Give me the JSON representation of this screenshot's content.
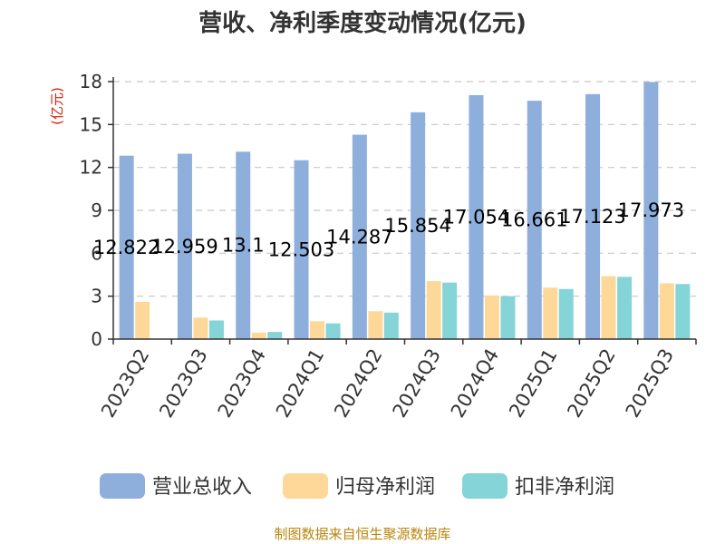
{
  "chart_data": {
    "type": "bar",
    "title": "营收、净利季度变动情况(亿元)",
    "ylabel": "(亿元)",
    "ylim": [
      0,
      18
    ],
    "yticks": [
      0,
      3,
      6,
      9,
      12,
      15,
      18
    ],
    "grid": true,
    "legend_position": "bottom",
    "categories": [
      "2023Q2",
      "2023Q3",
      "2023Q4",
      "2024Q1",
      "2024Q2",
      "2024Q3",
      "2024Q4",
      "2025Q1",
      "2025Q2",
      "2025Q3"
    ],
    "series": [
      {
        "name": "营业总收入",
        "color": "#8eaedb",
        "values": [
          12.822,
          12.959,
          13.1,
          12.503,
          14.287,
          15.854,
          17.054,
          16.661,
          17.123,
          17.973
        ],
        "labels": [
          "12.822",
          "12.959",
          "13.1",
          "12.503",
          "14.287",
          "15.854",
          "17.054",
          "16.661",
          "17.123",
          "17.973"
        ]
      },
      {
        "name": "归母净利润",
        "color": "#fdd898",
        "values": [
          2.6,
          1.5,
          0.45,
          1.25,
          1.95,
          4.05,
          3.05,
          3.6,
          4.4,
          3.9
        ]
      },
      {
        "name": "扣非净利润",
        "color": "#85d4d8",
        "values": [
          null,
          1.3,
          0.5,
          1.1,
          1.85,
          3.95,
          3.0,
          3.5,
          4.35,
          3.85
        ]
      }
    ],
    "source": "制图数据来自恒生聚源数据库"
  }
}
